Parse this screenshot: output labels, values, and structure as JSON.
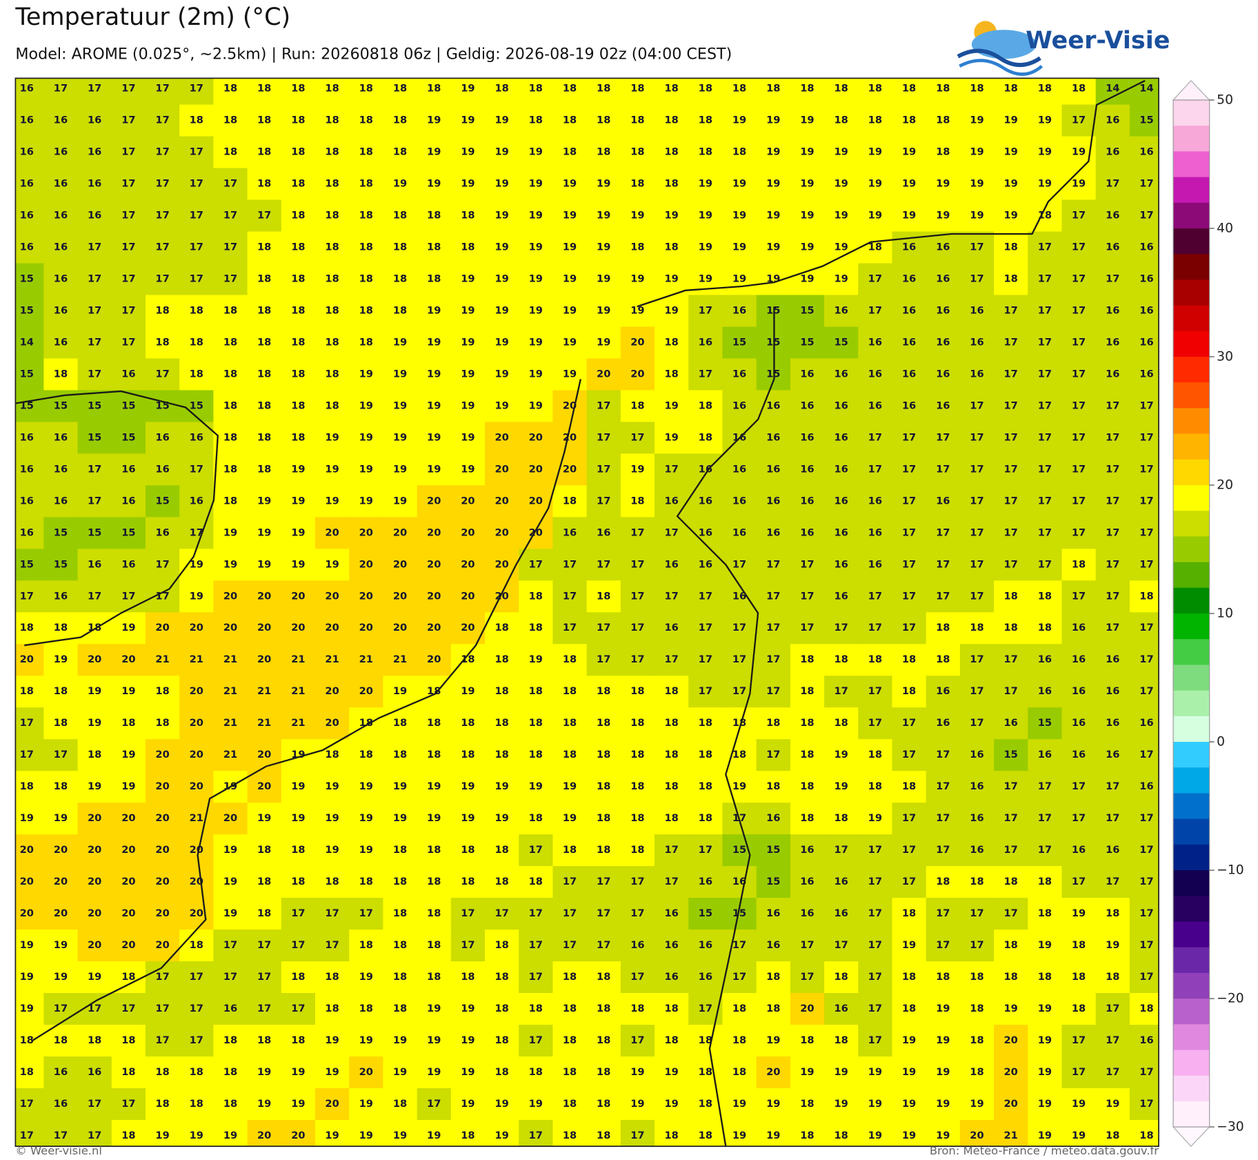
{
  "header": {
    "title": "Temperatuur (2m) (°C)",
    "subtitle": "Model: AROME (0.025°, ~2.5km)  |  Run: 20260818 06z  |  Geldig: 2026-08-19 02z (04:00 CEST)",
    "logo": "Weer-Visie"
  },
  "map": {
    "grid": [
      [
        16,
        17,
        17,
        17,
        17,
        17,
        18,
        18,
        18,
        18,
        18,
        18,
        18,
        19,
        18,
        18,
        18,
        18,
        18,
        18,
        18,
        18,
        18,
        18,
        18,
        18,
        18,
        18,
        18,
        18,
        18,
        18,
        14,
        14
      ],
      [
        16,
        16,
        16,
        17,
        17,
        18,
        18,
        18,
        18,
        18,
        18,
        18,
        19,
        19,
        19,
        18,
        18,
        18,
        18,
        18,
        18,
        19,
        19,
        19,
        18,
        18,
        18,
        18,
        19,
        19,
        19,
        17,
        16,
        15
      ],
      [
        16,
        16,
        16,
        17,
        17,
        17,
        18,
        18,
        18,
        18,
        18,
        18,
        19,
        19,
        19,
        19,
        18,
        18,
        18,
        18,
        18,
        18,
        19,
        19,
        19,
        19,
        19,
        18,
        19,
        19,
        19,
        19,
        16,
        16
      ],
      [
        16,
        16,
        16,
        17,
        17,
        17,
        17,
        18,
        18,
        18,
        18,
        19,
        19,
        19,
        19,
        19,
        19,
        19,
        18,
        18,
        19,
        19,
        19,
        19,
        19,
        19,
        19,
        19,
        19,
        19,
        19,
        19,
        17,
        17
      ],
      [
        16,
        16,
        16,
        17,
        17,
        17,
        17,
        17,
        18,
        18,
        18,
        18,
        18,
        18,
        19,
        19,
        19,
        19,
        19,
        19,
        19,
        19,
        19,
        19,
        19,
        19,
        19,
        19,
        19,
        19,
        18,
        17,
        16,
        17
      ],
      [
        16,
        16,
        17,
        17,
        17,
        17,
        17,
        18,
        18,
        18,
        18,
        18,
        18,
        18,
        19,
        19,
        19,
        19,
        18,
        18,
        19,
        19,
        19,
        19,
        19,
        18,
        16,
        16,
        17,
        18,
        17,
        17,
        16,
        16
      ],
      [
        15,
        16,
        17,
        17,
        17,
        17,
        17,
        18,
        18,
        18,
        18,
        18,
        18,
        19,
        19,
        19,
        19,
        19,
        19,
        19,
        19,
        19,
        19,
        19,
        19,
        17,
        16,
        16,
        17,
        18,
        17,
        17,
        17,
        16
      ],
      [
        15,
        16,
        17,
        17,
        18,
        18,
        18,
        18,
        18,
        18,
        18,
        18,
        19,
        19,
        19,
        19,
        19,
        19,
        19,
        19,
        17,
        16,
        15,
        15,
        16,
        17,
        16,
        16,
        16,
        17,
        17,
        17,
        16,
        16
      ],
      [
        14,
        16,
        17,
        17,
        18,
        18,
        18,
        18,
        18,
        18,
        18,
        19,
        19,
        19,
        19,
        19,
        19,
        19,
        20,
        18,
        16,
        15,
        15,
        15,
        15,
        16,
        16,
        16,
        16,
        17,
        17,
        17,
        16,
        16
      ],
      [
        15,
        18,
        17,
        16,
        17,
        18,
        18,
        18,
        18,
        18,
        19,
        19,
        19,
        19,
        19,
        19,
        19,
        20,
        20,
        18,
        17,
        16,
        15,
        16,
        16,
        16,
        16,
        16,
        16,
        17,
        17,
        17,
        16,
        16
      ],
      [
        15,
        15,
        15,
        15,
        15,
        15,
        18,
        18,
        18,
        18,
        19,
        19,
        19,
        19,
        19,
        19,
        20,
        17,
        18,
        19,
        18,
        16,
        16,
        16,
        16,
        16,
        16,
        16,
        17,
        17,
        17,
        17,
        17,
        17
      ],
      [
        16,
        16,
        15,
        15,
        16,
        16,
        18,
        18,
        18,
        19,
        19,
        19,
        19,
        19,
        20,
        20,
        20,
        17,
        17,
        19,
        18,
        16,
        16,
        16,
        16,
        17,
        17,
        17,
        17,
        17,
        17,
        17,
        17,
        17
      ],
      [
        16,
        16,
        17,
        16,
        16,
        17,
        18,
        18,
        19,
        19,
        19,
        19,
        19,
        19,
        20,
        20,
        20,
        17,
        19,
        17,
        16,
        16,
        16,
        16,
        16,
        17,
        17,
        17,
        17,
        17,
        17,
        17,
        17,
        17
      ],
      [
        16,
        16,
        17,
        16,
        15,
        16,
        18,
        19,
        19,
        19,
        19,
        19,
        20,
        20,
        20,
        20,
        18,
        17,
        18,
        16,
        16,
        16,
        16,
        16,
        16,
        16,
        17,
        16,
        17,
        17,
        17,
        17,
        17,
        17
      ],
      [
        16,
        15,
        15,
        15,
        16,
        17,
        19,
        19,
        19,
        20,
        20,
        20,
        20,
        20,
        20,
        20,
        16,
        16,
        17,
        17,
        16,
        16,
        16,
        16,
        16,
        16,
        17,
        17,
        17,
        17,
        17,
        17,
        17,
        17
      ],
      [
        15,
        15,
        16,
        16,
        17,
        19,
        19,
        19,
        19,
        19,
        20,
        20,
        20,
        20,
        20,
        17,
        17,
        17,
        17,
        16,
        16,
        17,
        17,
        17,
        16,
        16,
        17,
        17,
        17,
        17,
        17,
        18,
        17,
        17
      ],
      [
        17,
        16,
        17,
        17,
        17,
        19,
        20,
        20,
        20,
        20,
        20,
        20,
        20,
        20,
        20,
        18,
        17,
        18,
        17,
        17,
        17,
        16,
        17,
        17,
        16,
        17,
        17,
        17,
        17,
        18,
        18,
        17,
        17,
        18
      ],
      [
        18,
        18,
        18,
        19,
        20,
        20,
        20,
        20,
        20,
        20,
        20,
        20,
        20,
        20,
        18,
        18,
        17,
        17,
        17,
        16,
        17,
        17,
        17,
        17,
        17,
        17,
        17,
        18,
        18,
        18,
        18,
        16,
        17,
        17
      ],
      [
        20,
        19,
        20,
        20,
        21,
        21,
        21,
        20,
        21,
        21,
        21,
        21,
        20,
        18,
        18,
        19,
        18,
        17,
        17,
        17,
        17,
        17,
        17,
        18,
        18,
        18,
        18,
        18,
        17,
        17,
        16,
        16,
        16,
        17
      ],
      [
        18,
        18,
        19,
        19,
        18,
        20,
        21,
        21,
        21,
        20,
        20,
        19,
        18,
        19,
        18,
        18,
        18,
        18,
        18,
        18,
        17,
        17,
        17,
        18,
        17,
        17,
        18,
        16,
        17,
        17,
        16,
        16,
        16,
        17
      ],
      [
        17,
        18,
        19,
        18,
        18,
        20,
        21,
        21,
        21,
        20,
        18,
        18,
        18,
        18,
        18,
        18,
        18,
        18,
        18,
        18,
        18,
        18,
        18,
        18,
        18,
        17,
        17,
        16,
        17,
        16,
        15,
        16,
        16,
        16
      ],
      [
        17,
        17,
        18,
        19,
        20,
        20,
        21,
        20,
        19,
        18,
        18,
        18,
        18,
        18,
        18,
        18,
        18,
        18,
        18,
        18,
        18,
        18,
        17,
        18,
        19,
        18,
        17,
        17,
        16,
        15,
        16,
        16,
        16,
        17
      ],
      [
        18,
        18,
        19,
        19,
        20,
        20,
        19,
        20,
        19,
        19,
        19,
        19,
        19,
        19,
        19,
        19,
        19,
        18,
        18,
        18,
        18,
        19,
        18,
        18,
        19,
        18,
        18,
        17,
        16,
        17,
        17,
        17,
        17,
        16
      ],
      [
        19,
        19,
        20,
        20,
        20,
        21,
        20,
        19,
        19,
        19,
        19,
        19,
        19,
        19,
        19,
        18,
        19,
        18,
        18,
        18,
        18,
        17,
        16,
        18,
        18,
        19,
        17,
        17,
        16,
        17,
        17,
        17,
        17,
        17
      ],
      [
        20,
        20,
        20,
        20,
        20,
        20,
        19,
        18,
        18,
        19,
        19,
        18,
        18,
        18,
        18,
        17,
        18,
        18,
        18,
        17,
        17,
        15,
        15,
        16,
        17,
        17,
        17,
        17,
        16,
        17,
        17,
        16,
        16,
        17
      ],
      [
        20,
        20,
        20,
        20,
        20,
        20,
        19,
        18,
        18,
        18,
        18,
        18,
        18,
        18,
        18,
        18,
        17,
        17,
        17,
        17,
        16,
        16,
        15,
        16,
        16,
        17,
        17,
        18,
        18,
        18,
        18,
        17,
        17,
        17
      ],
      [
        20,
        20,
        20,
        20,
        20,
        20,
        19,
        18,
        17,
        17,
        17,
        18,
        18,
        17,
        17,
        17,
        17,
        17,
        17,
        16,
        15,
        15,
        16,
        16,
        16,
        17,
        18,
        17,
        17,
        17,
        18,
        19,
        18,
        17
      ],
      [
        19,
        19,
        20,
        20,
        20,
        18,
        17,
        17,
        17,
        17,
        18,
        18,
        18,
        17,
        18,
        17,
        17,
        17,
        16,
        16,
        16,
        17,
        16,
        17,
        17,
        17,
        19,
        17,
        17,
        18,
        19,
        18,
        19,
        17
      ],
      [
        19,
        19,
        19,
        18,
        17,
        17,
        17,
        17,
        18,
        18,
        19,
        18,
        18,
        18,
        18,
        17,
        18,
        18,
        17,
        16,
        16,
        17,
        18,
        17,
        18,
        17,
        18,
        18,
        18,
        18,
        18,
        18,
        18,
        17
      ],
      [
        19,
        17,
        17,
        17,
        17,
        17,
        16,
        17,
        17,
        18,
        18,
        18,
        19,
        19,
        18,
        18,
        18,
        18,
        18,
        18,
        17,
        18,
        18,
        20,
        16,
        17,
        18,
        19,
        18,
        19,
        19,
        18,
        17,
        18
      ],
      [
        18,
        18,
        18,
        18,
        17,
        17,
        18,
        18,
        18,
        19,
        19,
        19,
        19,
        19,
        18,
        17,
        18,
        18,
        17,
        18,
        18,
        18,
        19,
        18,
        18,
        17,
        19,
        19,
        18,
        20,
        19,
        17,
        17,
        16
      ],
      [
        18,
        16,
        16,
        18,
        18,
        18,
        18,
        19,
        19,
        19,
        20,
        19,
        19,
        19,
        18,
        18,
        18,
        18,
        19,
        19,
        18,
        18,
        20,
        19,
        19,
        19,
        19,
        19,
        18,
        20,
        19,
        17,
        17,
        17
      ],
      [
        17,
        16,
        17,
        17,
        18,
        18,
        18,
        19,
        19,
        20,
        19,
        18,
        17,
        19,
        19,
        19,
        18,
        18,
        19,
        19,
        18,
        19,
        19,
        18,
        19,
        19,
        19,
        19,
        19,
        20,
        19,
        19,
        19,
        17
      ],
      [
        17,
        17,
        17,
        18,
        19,
        19,
        19,
        20,
        20,
        19,
        19,
        19,
        19,
        18,
        19,
        17,
        18,
        18,
        17,
        18,
        18,
        19,
        19,
        18,
        18,
        19,
        19,
        19,
        20,
        21,
        19,
        19,
        18,
        18
      ]
    ]
  },
  "colorbar": {
    "lim": [
      -30,
      50
    ],
    "ticks": [
      50,
      40,
      30,
      20,
      10,
      0,
      {
        "value": -10,
        "label": "−10"
      },
      {
        "value": -20,
        "label": "−20"
      },
      {
        "value": -30,
        "label": "−30"
      }
    ],
    "colors": [
      "#fcd6ec",
      "#f7a8d8",
      "#ee5fd0",
      "#c418b0",
      "#8c0a78",
      "#4f0030",
      "#7a0000",
      "#a80000",
      "#d00000",
      "#f00000",
      "#ff2a00",
      "#ff5500",
      "#ff8c00",
      "#ffb400",
      "#ffd800",
      "#ffff00",
      "#ccdd00",
      "#99cc00",
      "#55b000",
      "#008c00",
      "#00b400",
      "#44cc44",
      "#7edc7e",
      "#aaf0aa",
      "#d6ffe0",
      "#33ccff",
      "#00a8e8",
      "#0070cc",
      "#0044aa",
      "#002288",
      "#140050",
      "#280060",
      "#48008c",
      "#6a28a8",
      "#9040b8",
      "#b860cc",
      "#e088e0",
      "#f8b0f0",
      "#fcd6f8",
      "#fff0fc"
    ]
  },
  "footer": {
    "left": "© Weer-visie.nl",
    "right": "Bron: Météo-France / meteo.data.gouv.fr"
  }
}
